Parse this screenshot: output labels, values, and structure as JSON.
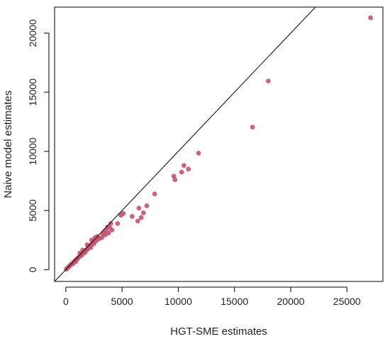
{
  "chart_data": {
    "type": "scatter",
    "xlabel": "HGT-SME estimates",
    "ylabel": "Naive model estimates",
    "xlim": [
      -1000,
      28200
    ],
    "ylim": [
      -1000,
      22200
    ],
    "x_ticks": [
      0,
      5000,
      10000,
      15000,
      20000,
      25000
    ],
    "y_ticks": [
      0,
      5000,
      10000,
      15000,
      20000
    ],
    "x_tick_labels": [
      "0",
      "5000",
      "10000",
      "15000",
      "20000",
      "25000"
    ],
    "y_tick_labels": [
      "0",
      "5000",
      "10000",
      "15000",
      "20000"
    ],
    "grid": false,
    "point_color": "#c8526e",
    "reference_line": {
      "slope": 1,
      "intercept": 0,
      "color": "#000000"
    },
    "series": [
      {
        "points": [
          [
            27100,
            21300
          ],
          [
            18000,
            15950
          ],
          [
            16600,
            12050
          ],
          [
            11800,
            9850
          ],
          [
            10900,
            8500
          ],
          [
            10500,
            8800
          ],
          [
            10300,
            8250
          ],
          [
            9700,
            7600
          ],
          [
            9600,
            7900
          ],
          [
            7900,
            6400
          ],
          [
            7200,
            5400
          ],
          [
            6900,
            4800
          ],
          [
            6700,
            4400
          ],
          [
            6500,
            5200
          ],
          [
            6400,
            4100
          ],
          [
            5900,
            4500
          ],
          [
            5100,
            4750
          ],
          [
            4900,
            4600
          ],
          [
            4600,
            3900
          ],
          [
            4100,
            3350
          ],
          [
            4000,
            3900
          ],
          [
            3900,
            3550
          ],
          [
            3800,
            3100
          ],
          [
            3700,
            3600
          ],
          [
            3600,
            3300
          ],
          [
            3500,
            2950
          ],
          [
            3400,
            3200
          ],
          [
            3300,
            3000
          ],
          [
            3200,
            2700
          ],
          [
            3000,
            2650
          ],
          [
            2900,
            2600
          ],
          [
            2800,
            2800
          ],
          [
            2700,
            2450
          ],
          [
            2600,
            2700
          ],
          [
            2500,
            2200
          ],
          [
            2400,
            2300
          ],
          [
            2300,
            2100
          ],
          [
            2200,
            1850
          ],
          [
            2100,
            2000
          ],
          [
            2000,
            1900
          ],
          [
            1900,
            1700
          ],
          [
            1800,
            1650
          ],
          [
            1700,
            1600
          ],
          [
            1600,
            1500
          ],
          [
            1500,
            1350
          ],
          [
            1400,
            1200
          ],
          [
            1300,
            1250
          ],
          [
            1200,
            1100
          ],
          [
            1100,
            1000
          ],
          [
            1000,
            900
          ],
          [
            900,
            850
          ],
          [
            800,
            700
          ],
          [
            700,
            650
          ],
          [
            600,
            550
          ],
          [
            500,
            450
          ],
          [
            400,
            380
          ],
          [
            300,
            280
          ],
          [
            200,
            180
          ],
          [
            100,
            90
          ],
          [
            50,
            40
          ],
          [
            1250,
            1400
          ],
          [
            1900,
            2100
          ],
          [
            2300,
            2500
          ],
          [
            1500,
            1650
          ],
          [
            1700,
            1450
          ],
          [
            2500,
            2400
          ],
          [
            900,
            700
          ],
          [
            650,
            500
          ]
        ]
      }
    ]
  }
}
